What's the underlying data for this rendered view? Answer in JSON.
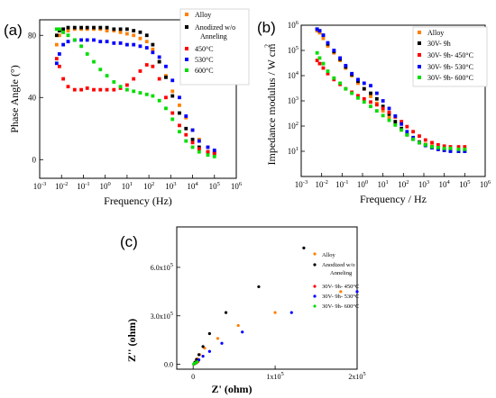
{
  "chart_data": [
    {
      "panel_label": "(a)",
      "type": "scatter",
      "x_scale": "log",
      "xlim": [
        0.001,
        1000000
      ],
      "ylim": [
        -12,
        90
      ],
      "xlabel": "Frequency (Hz)",
      "ylabel": "Phase Angle (°)",
      "x_ticks": [
        "10",
        "10",
        "10",
        "10",
        "10",
        "10",
        "10",
        "10",
        "10",
        "10"
      ],
      "x_tick_exps": [
        "-3",
        "-2",
        "-1",
        "0",
        "1",
        "2",
        "3",
        "4",
        "5",
        "6"
      ],
      "y_ticks": [
        "0",
        "40",
        "80"
      ],
      "legend_placement": "top-right",
      "series": [
        {
          "name": "Alloy",
          "color": "#ff8000",
          "marker": "square",
          "x": [
            0.006,
            0.008,
            0.012,
            0.02,
            0.04,
            0.08,
            0.15,
            0.3,
            0.6,
            1.2,
            2.5,
            5,
            10,
            20,
            40,
            80,
            150,
            300,
            600,
            1200,
            2500,
            5000,
            10000,
            20000,
            50000,
            100000
          ],
          "y": [
            74,
            80,
            82,
            83,
            84,
            84,
            84,
            84,
            84,
            83,
            83,
            82,
            81,
            80,
            78,
            76,
            71,
            63,
            54,
            44,
            35,
            27,
            19,
            13,
            8,
            5
          ]
        },
        {
          "name": "Anodized w/o Anneling",
          "color": "#000000",
          "marker": "square",
          "x": [
            0.006,
            0.008,
            0.012,
            0.02,
            0.04,
            0.08,
            0.15,
            0.3,
            0.6,
            1.2,
            2.5,
            5,
            10,
            20,
            40,
            80,
            150,
            300,
            600,
            1200,
            2500,
            5000,
            10000,
            20000,
            50000,
            100000
          ],
          "y": [
            80,
            83,
            84,
            85,
            85,
            85,
            85,
            85,
            85,
            85,
            84,
            84,
            84,
            83,
            82,
            80,
            74,
            63,
            53,
            41,
            30,
            20,
            13,
            8,
            5,
            4
          ]
        },
        {
          "name": "450°C",
          "color": "#ff0000",
          "marker": "square",
          "x": [
            0.006,
            0.008,
            0.012,
            0.02,
            0.04,
            0.08,
            0.15,
            0.3,
            0.6,
            1.2,
            2.5,
            5,
            10,
            20,
            40,
            80,
            150,
            300,
            600,
            1200,
            2500,
            5000,
            10000,
            20000,
            50000,
            100000
          ],
          "y": [
            65,
            60,
            52,
            47,
            45,
            45,
            46,
            45,
            45,
            45,
            45,
            46,
            48,
            52,
            57,
            61,
            60,
            52,
            40,
            30,
            22,
            16,
            11,
            7,
            5,
            4
          ]
        },
        {
          "name": "530°C",
          "color": "#0000ff",
          "marker": "square",
          "x": [
            0.006,
            0.008,
            0.012,
            0.02,
            0.04,
            0.08,
            0.15,
            0.3,
            0.6,
            1.2,
            2.5,
            5,
            10,
            20,
            40,
            80,
            150,
            300,
            600,
            1200,
            2500,
            5000,
            10000,
            20000,
            50000,
            100000
          ],
          "y": [
            62,
            68,
            74,
            76,
            77,
            77,
            77,
            77,
            76,
            76,
            75,
            75,
            74,
            74,
            73,
            72,
            69,
            66,
            60,
            51,
            40,
            28,
            19,
            12,
            8,
            6
          ]
        },
        {
          "name": "600°C",
          "color": "#00dd00",
          "marker": "square",
          "x": [
            0.006,
            0.008,
            0.012,
            0.02,
            0.04,
            0.08,
            0.15,
            0.3,
            0.6,
            1.2,
            2.5,
            5,
            10,
            20,
            40,
            80,
            150,
            300,
            600,
            1200,
            2500,
            5000,
            10000,
            20000,
            50000,
            100000
          ],
          "y": [
            84,
            84,
            82,
            80,
            77,
            73,
            68,
            63,
            58,
            54,
            50,
            47,
            45,
            44,
            43,
            42,
            41,
            38,
            33,
            26,
            18,
            12,
            8,
            5,
            3,
            2
          ]
        }
      ]
    },
    {
      "panel_label": "(b)",
      "type": "scatter",
      "x_scale": "log",
      "y_scale": "log",
      "xlim": [
        0.001,
        1000000
      ],
      "ylim": [
        1,
        1000000
      ],
      "xlabel": "Frequency / Hz",
      "ylabel": "Impedance modulus / W cm",
      "ylabel_sup": "2",
      "x_ticks": [
        "10",
        "10",
        "10",
        "10",
        "10",
        "10",
        "10",
        "10",
        "10",
        "10"
      ],
      "x_tick_exps": [
        "-3",
        "-2",
        "-1",
        "0",
        "1",
        "2",
        "3",
        "4",
        "5",
        "6"
      ],
      "y_ticks": [
        "10",
        "10",
        "10",
        "10",
        "10",
        "10"
      ],
      "y_tick_exps": [
        "1",
        "2",
        "3",
        "4",
        "5",
        "6"
      ],
      "legend_placement": "top-right",
      "series": [
        {
          "name": "Alloy",
          "color": "#ff8000",
          "marker": "square",
          "x": [
            0.006,
            0.008,
            0.012,
            0.02,
            0.04,
            0.08,
            0.15,
            0.3,
            0.6,
            1.2,
            2.5,
            5,
            10,
            20,
            40,
            80,
            150,
            300,
            600,
            1200,
            2500,
            5000,
            10000,
            20000,
            50000,
            100000
          ],
          "y": [
            600000,
            500000,
            300000,
            150000,
            80000,
            40000,
            20000,
            10000,
            5000,
            3000,
            1500,
            800,
            400,
            220,
            120,
            70,
            45,
            32,
            24,
            19,
            16,
            14,
            13,
            12,
            12,
            12
          ]
        },
        {
          "name": "30V- 9h",
          "color": "#000000",
          "marker": "square",
          "x": [
            0.006,
            0.008,
            0.012,
            0.02,
            0.04,
            0.08,
            0.15,
            0.3,
            0.6,
            1.2,
            2.5,
            5,
            10,
            20,
            40,
            80,
            150,
            300,
            600,
            1200,
            2500,
            5000,
            10000,
            20000,
            50000,
            100000
          ],
          "y": [
            700000,
            600000,
            400000,
            180000,
            90000,
            45000,
            22000,
            11000,
            6000,
            3000,
            2000,
            1200,
            600,
            300,
            150,
            80,
            45,
            30,
            22,
            17,
            14,
            12,
            11,
            11,
            10,
            10
          ]
        },
        {
          "name": "30V- 9h- 450°C",
          "color": "#ff0000",
          "marker": "square",
          "x": [
            0.006,
            0.008,
            0.012,
            0.02,
            0.04,
            0.08,
            0.15,
            0.3,
            0.6,
            1.2,
            2.5,
            5,
            10,
            20,
            40,
            80,
            150,
            300,
            600,
            1200,
            2500,
            5000,
            10000,
            20000,
            50000,
            100000
          ],
          "y": [
            40000,
            30000,
            20000,
            12000,
            7000,
            4500,
            3000,
            2200,
            1600,
            1200,
            900,
            700,
            500,
            350,
            230,
            150,
            95,
            60,
            40,
            28,
            22,
            18,
            16,
            15,
            15,
            15
          ]
        },
        {
          "name": "30V- 9h- 530°C",
          "color": "#0000ff",
          "marker": "square",
          "x": [
            0.006,
            0.008,
            0.012,
            0.02,
            0.04,
            0.08,
            0.15,
            0.3,
            0.6,
            1.2,
            2.5,
            5,
            10,
            20,
            40,
            80,
            150,
            300,
            600,
            1200,
            2500,
            5000,
            10000,
            20000,
            50000,
            100000
          ],
          "y": [
            700000,
            600000,
            400000,
            200000,
            100000,
            50000,
            25000,
            12000,
            7000,
            5000,
            4000,
            2000,
            1000,
            500,
            250,
            120,
            60,
            35,
            23,
            17,
            14,
            12,
            11,
            10,
            10,
            10
          ]
        },
        {
          "name": "30V- 9h- 600°C",
          "color": "#00dd00",
          "marker": "square",
          "x": [
            0.006,
            0.008,
            0.012,
            0.02,
            0.04,
            0.08,
            0.15,
            0.3,
            0.6,
            1.2,
            2.5,
            5,
            10,
            20,
            40,
            80,
            150,
            300,
            600,
            1200,
            2500,
            5000,
            10000,
            20000,
            50000,
            100000
          ],
          "y": [
            80000,
            50000,
            30000,
            15000,
            8000,
            5000,
            3000,
            2000,
            1300,
            900,
            600,
            400,
            260,
            170,
            110,
            70,
            45,
            30,
            22,
            18,
            15,
            14,
            13,
            13,
            12,
            12
          ]
        }
      ]
    },
    {
      "panel_label": "(c)",
      "type": "scatter",
      "xlim": [
        -20000,
        200000
      ],
      "ylim": [
        -30000,
        850000
      ],
      "xlabel": "Z' (ohm)",
      "ylabel": "Z'' (ohm)",
      "x_ticks": [
        "0",
        "1x10",
        "2x10"
      ],
      "x_tick_values": [
        0,
        100000,
        200000
      ],
      "x_tick_exps": [
        "",
        "5",
        "5"
      ],
      "y_ticks": [
        "0.0",
        "3.0x10",
        "6.0x10"
      ],
      "y_tick_values": [
        0,
        300000,
        600000
      ],
      "y_tick_exps": [
        "",
        "5",
        "5"
      ],
      "legend_placement": "top-right",
      "series": [
        {
          "name": "Alloy",
          "color": "#ff8000",
          "marker": "circle",
          "x": [
            1000,
            2000,
            3000,
            5000,
            8000,
            14000,
            30000,
            55000,
            100000,
            180000
          ],
          "y": [
            2000,
            8000,
            18000,
            35000,
            60000,
            100000,
            160000,
            240000,
            320000,
            450000
          ]
        },
        {
          "name": "Anodized w/o Anneling",
          "color": "#000000",
          "marker": "circle",
          "x": [
            1000,
            2000,
            4000,
            7000,
            12000,
            20000,
            40000,
            80000,
            135000
          ],
          "y": [
            3000,
            12000,
            30000,
            60000,
            110000,
            190000,
            320000,
            480000,
            720000
          ]
        },
        {
          "name": "30V- 9h- 450°C",
          "color": "#ff0000",
          "marker": "circle",
          "x": [
            1000,
            2000,
            3000,
            4000,
            5000,
            6000
          ],
          "y": [
            1500,
            4000,
            7000,
            10000,
            14000,
            18000
          ]
        },
        {
          "name": "30V- 9h- 530°C",
          "color": "#0000ff",
          "marker": "circle",
          "x": [
            1000,
            2000,
            4000,
            7000,
            12000,
            20000,
            35000,
            60000,
            120000,
            200000
          ],
          "y": [
            2000,
            6000,
            14000,
            28000,
            50000,
            80000,
            130000,
            200000,
            320000,
            450000
          ]
        },
        {
          "name": "30V- 9h- 600°C",
          "color": "#00dd00",
          "marker": "circle",
          "x": [
            500,
            1000,
            2000,
            3000,
            4000,
            5000
          ],
          "y": [
            1000,
            3000,
            6000,
            9000,
            12000,
            16000
          ]
        }
      ]
    }
  ],
  "panel_a": {
    "legend": [
      "Alloy",
      "Anodized w/o",
      "Anneling",
      "450°C",
      "530°C",
      "600°C"
    ]
  },
  "panel_b": {
    "legend": [
      "Alloy",
      "30V- 9h",
      "30V- 9h- 450°C",
      "30V- 9h- 530°C",
      "30V- 9h- 600°C"
    ]
  },
  "panel_c": {
    "legend": [
      "Alloy",
      "Anodized w/o",
      "Anneling",
      "30V- 9h- 450°C",
      "30V- 9h- 530°C",
      "30V- 9h- 600°C"
    ]
  }
}
